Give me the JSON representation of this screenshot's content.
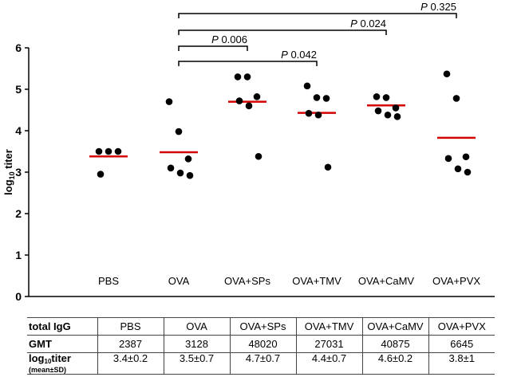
{
  "chart_data": {
    "type": "scatter",
    "ylabel_main": "log",
    "ylabel_sub": "10",
    "ylabel_rest": " titer",
    "ylim": [
      0,
      6
    ],
    "yticks": [
      "0",
      "1",
      "2",
      "3",
      "4",
      "5",
      "6"
    ],
    "categories": [
      "PBS",
      "OVA",
      "OVA+SPs",
      "OVA+TMV",
      "OVA+CaMV",
      "OVA+PVX"
    ],
    "points": [
      [
        3.5,
        3.5,
        3.5,
        2.95
      ],
      [
        4.7,
        3.98,
        3.32,
        3.1,
        2.98,
        2.92
      ],
      [
        5.3,
        5.3,
        4.82,
        4.72,
        4.6,
        3.38
      ],
      [
        5.08,
        4.8,
        4.78,
        4.42,
        4.38,
        3.12
      ],
      [
        4.82,
        4.8,
        4.55,
        4.48,
        4.38,
        4.34
      ],
      [
        5.37,
        4.78,
        3.37,
        3.33,
        3.08,
        3.0
      ]
    ],
    "means": [
      3.38,
      3.48,
      4.7,
      4.43,
      4.61,
      3.83
    ],
    "mean_color": "#d40000",
    "point_color": "#000000",
    "comparisons": [
      {
        "from": "OVA",
        "to": "OVA+SPs",
        "p_label": "P",
        "p_value": " 0.006"
      },
      {
        "from": "OVA",
        "to": "OVA+TMV",
        "p_label": "P",
        "p_value": " 0.042"
      },
      {
        "from": "OVA",
        "to": "OVA+CaMV",
        "p_label": "P",
        "p_value": " 0.024"
      },
      {
        "from": "OVA",
        "to": "OVA+PVX",
        "p_label": "P",
        "p_value": " 0.325"
      }
    ]
  },
  "table": {
    "header_label": "total IgG",
    "gmt_label": "GMT",
    "log_label_main": "log",
    "log_label_sub": "10",
    "log_label_rest": "titer",
    "log_label_note": "(mean±SD)",
    "groups": [
      "PBS",
      "OVA",
      "OVA+SPs",
      "OVA+TMV",
      "OVA+CaMV",
      "OVA+PVX"
    ],
    "gmt": [
      "2387",
      "3128",
      "48020",
      "27031",
      "40875",
      "6645"
    ],
    "log_titer": [
      "3.4±0.2",
      "3.5±0.7",
      "4.7±0.7",
      "4.4±0.7",
      "4.6±0.2",
      "3.8±1"
    ]
  }
}
